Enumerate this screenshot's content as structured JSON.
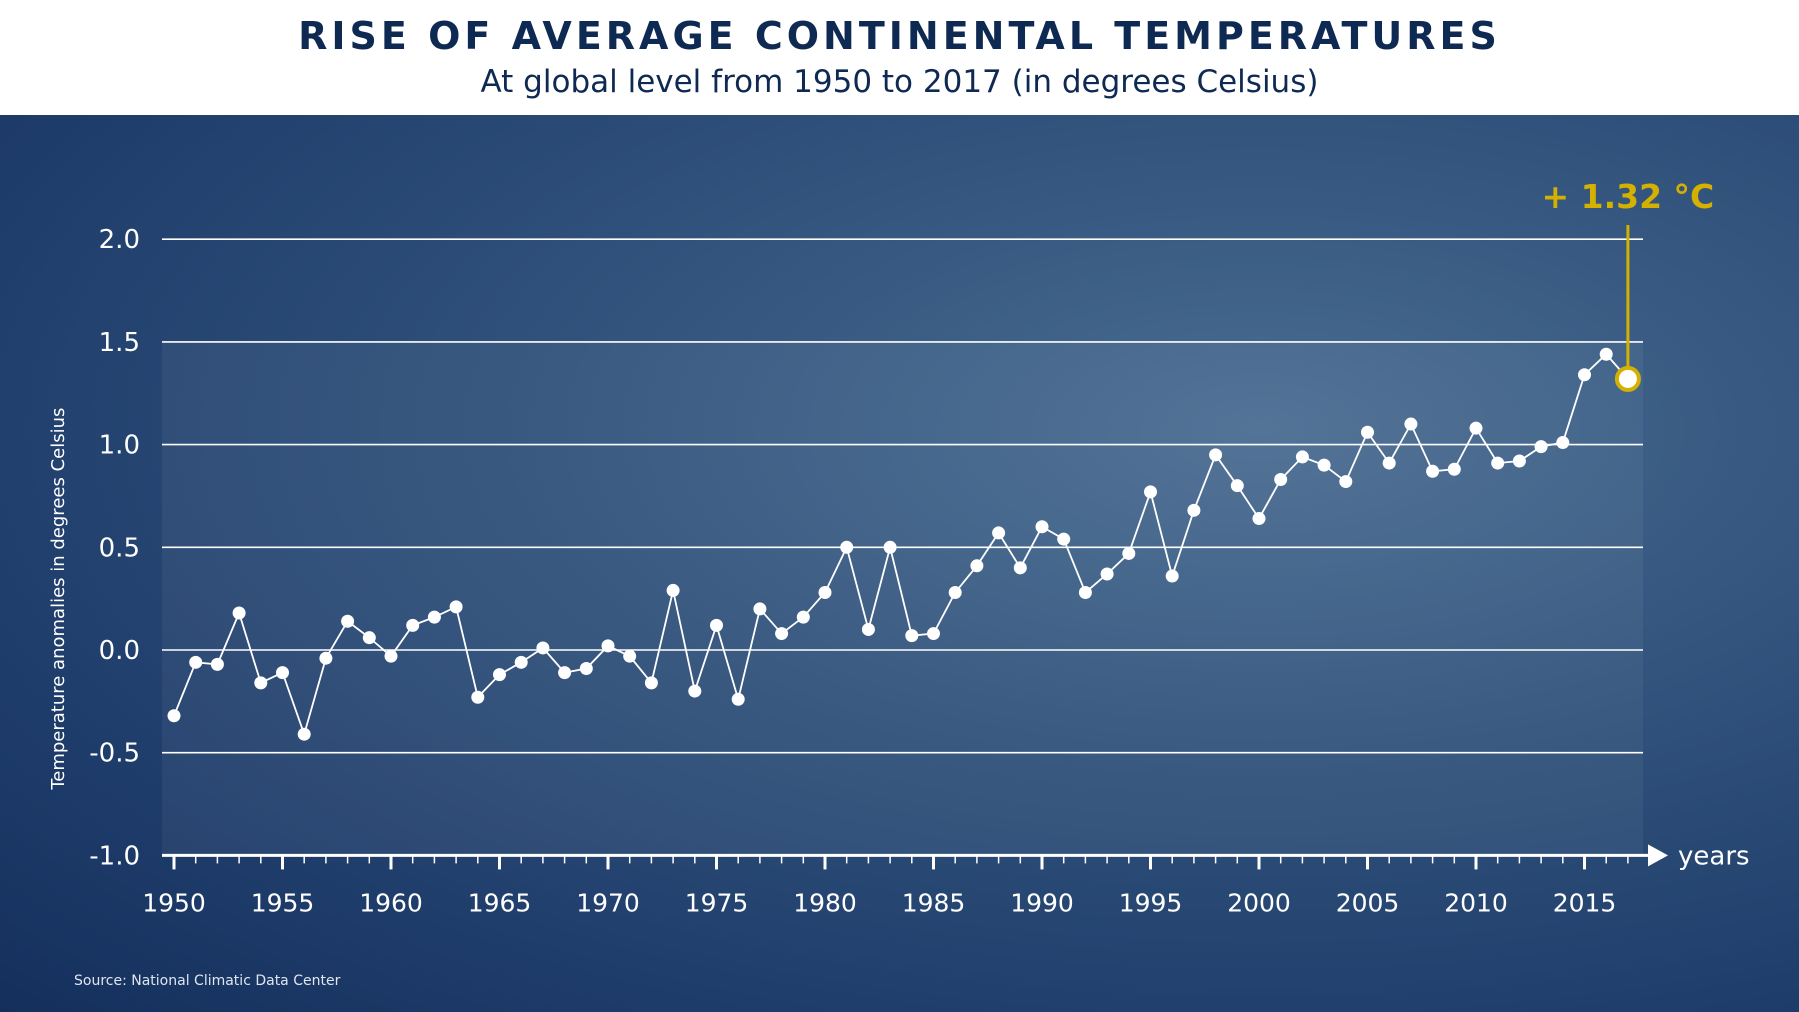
{
  "header": {
    "title": "RISE OF AVERAGE CONTINENTAL TEMPERATURES",
    "subtitle": "At global level from 1950 to 2017 (in degrees Celsius)"
  },
  "source": "Source: National Climatic Data Center",
  "colors": {
    "accent": "#d4b000",
    "line": "#ffffff",
    "grid": "#ffffff"
  },
  "chart_data": {
    "type": "line",
    "title": "RISE OF AVERAGE CONTINENTAL TEMPERATURES",
    "subtitle": "At global level from 1950 to 2017 (in degrees Celsius)",
    "xlabel": "years",
    "ylabel": "Temperature anomalies in degrees Celsius",
    "xlim": [
      1950,
      2017
    ],
    "ylim": [
      -1.0,
      2.0
    ],
    "grid": true,
    "yticks": [
      -1.0,
      -0.5,
      0.0,
      0.5,
      1.0,
      1.5,
      2.0
    ],
    "ytick_labels": [
      "-1.0",
      "-0.5",
      "0.0",
      "0.5",
      "1.0",
      "1.5",
      "2.0"
    ],
    "xticks": [
      1950,
      1955,
      1960,
      1965,
      1970,
      1975,
      1980,
      1985,
      1990,
      1995,
      2000,
      2005,
      2010,
      2015
    ],
    "xtick_labels": [
      "1950",
      "1955",
      "1960",
      "1965",
      "1970",
      "1975",
      "1980",
      "1985",
      "1990",
      "1995",
      "2000",
      "2005",
      "2010",
      "2015"
    ],
    "series": [
      {
        "name": "Temperature anomaly",
        "x": [
          1950,
          1951,
          1952,
          1953,
          1954,
          1955,
          1956,
          1957,
          1958,
          1959,
          1960,
          1961,
          1962,
          1963,
          1964,
          1965,
          1966,
          1967,
          1968,
          1969,
          1970,
          1971,
          1972,
          1973,
          1974,
          1975,
          1976,
          1977,
          1978,
          1979,
          1980,
          1981,
          1982,
          1983,
          1984,
          1985,
          1986,
          1987,
          1988,
          1989,
          1990,
          1991,
          1992,
          1993,
          1994,
          1995,
          1996,
          1997,
          1998,
          1999,
          2000,
          2001,
          2002,
          2003,
          2004,
          2005,
          2006,
          2007,
          2008,
          2009,
          2010,
          2011,
          2012,
          2013,
          2014,
          2015,
          2016,
          2017
        ],
        "values": [
          -0.32,
          -0.06,
          -0.07,
          0.18,
          -0.16,
          -0.11,
          -0.41,
          -0.04,
          0.14,
          0.06,
          -0.03,
          0.12,
          0.16,
          0.21,
          -0.23,
          -0.12,
          -0.06,
          0.01,
          -0.11,
          -0.09,
          0.02,
          -0.03,
          -0.16,
          0.29,
          -0.2,
          0.12,
          -0.24,
          0.2,
          0.08,
          0.16,
          0.28,
          0.5,
          0.1,
          0.5,
          0.07,
          0.08,
          0.28,
          0.41,
          0.57,
          0.4,
          0.6,
          0.54,
          0.28,
          0.37,
          0.47,
          0.77,
          0.36,
          0.68,
          0.95,
          0.8,
          0.64,
          0.83,
          0.94,
          0.9,
          0.82,
          1.06,
          0.91,
          1.1,
          0.87,
          0.88,
          1.08,
          0.91,
          0.92,
          0.99,
          1.01,
          1.34,
          1.44,
          1.32
        ]
      }
    ],
    "annotations": [
      {
        "x": 2017,
        "y": 1.32,
        "text": "+ 1.32 °C"
      }
    ]
  }
}
